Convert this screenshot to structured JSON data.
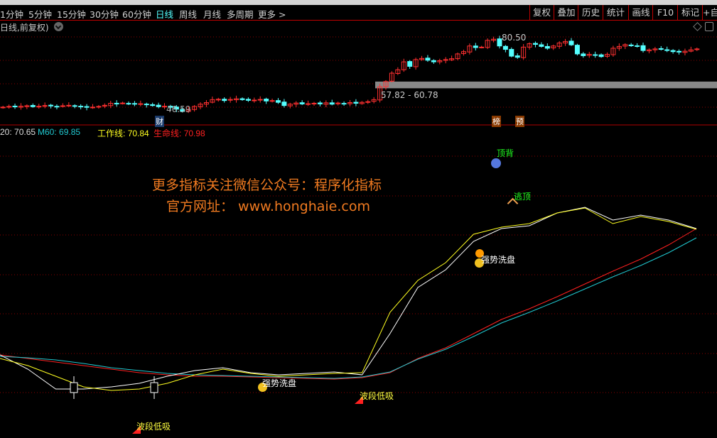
{
  "toolbar": {
    "periods": [
      "1分钟",
      "5分钟",
      "15分钟",
      "30分钟",
      "60分钟",
      "日线",
      "周线",
      "月线",
      "多周期",
      "更多 >"
    ],
    "active": "日线",
    "buttons": [
      "复权",
      "叠加",
      "历史",
      "统计",
      "画线",
      "F10",
      "标记",
      "+自"
    ]
  },
  "subtitle": "日线,前复权)",
  "icons": {
    "dropdown": "chevron-down-icon",
    "diamond": "diamond-icon",
    "layout": "panel-toggle-icon"
  },
  "price_panel": {
    "high_label": "80.50",
    "low_label": "46.59",
    "gap_label": "57.82 - 60.78",
    "gap_range": [
      57.82,
      60.78
    ],
    "tags": [
      "财",
      "榜",
      "预"
    ],
    "closes": [
      49.5,
      49.8,
      49.6,
      49.9,
      50.1,
      49.7,
      49.9,
      50.2,
      50.0,
      49.8,
      50.1,
      50.3,
      49.9,
      49.6,
      49.4,
      49.5,
      49.8,
      50.3,
      51.2,
      51.0,
      51.3,
      51.1,
      50.8,
      51.0,
      50.6,
      50.2,
      49.7,
      49.9,
      49.4,
      48.6,
      47.6,
      48.3,
      49.8,
      50.8,
      51.5,
      52.8,
      53.0,
      52.4,
      52.9,
      53.2,
      52.8,
      52.5,
      52.6,
      52.9,
      52.2,
      52.4,
      51.6,
      50.2,
      50.8,
      51.3,
      50.9,
      51.0,
      51.2,
      50.9,
      51.4,
      50.8,
      51.3,
      51.0,
      51.5,
      51.2,
      51.6,
      51.9,
      52.8,
      58.5,
      60.8,
      64.5,
      66,
      69.5,
      67.5,
      70.5,
      71,
      70.2,
      69.5,
      70,
      70.5,
      70.9,
      73,
      74,
      76.5,
      75.8,
      76,
      79,
      79.5,
      76.5,
      75,
      72,
      71.5,
      76,
      77.5,
      77.2,
      76.3,
      75.5,
      76.5,
      77.8,
      78.5,
      77,
      73,
      72.2,
      72.8,
      72.6,
      71.8,
      72.8,
      75.5,
      76.3,
      77.1,
      76.6,
      76.5,
      74.5,
      74.8,
      75.2,
      75,
      74.5,
      74,
      73.8,
      74.2,
      74.8,
      75.2
    ],
    "up_color": "#ff3030",
    "down_color": "#54ffff"
  },
  "indicators": {
    "m20_label": "20:",
    "m20": "70.65",
    "m60_label": "M60:",
    "m60": "69.85",
    "work_label": "工作线:",
    "work": "70.84",
    "life_label": "生命线:",
    "life": "70.98"
  },
  "watermark": {
    "line1": "更多指标关注微信公众号：程序化指标",
    "line2": "官方网址： www.honghaie.com"
  },
  "signals": {
    "top_div": "顶背",
    "escape_top": "逃顶",
    "wash1": "强势洗盘",
    "wash2": "强势洗盘",
    "low_buy1": "波段低吸",
    "low_buy2": "波段低吸"
  },
  "lines": {
    "life": {
      "color": "#ff2020",
      "values": [
        117,
        112,
        107,
        102,
        97,
        92,
        89,
        87,
        87,
        86,
        85,
        84,
        83,
        85,
        92,
        112,
        127,
        147,
        167,
        182,
        199,
        217,
        235,
        252,
        272,
        295
      ]
    },
    "m60": {
      "color": "#20c8d0",
      "values": [
        115,
        113,
        110,
        105,
        99,
        95,
        91,
        89,
        88,
        87,
        86,
        85,
        84,
        86,
        93,
        111,
        125,
        143,
        162,
        177,
        193,
        210,
        227,
        243,
        261,
        282
      ]
    },
    "m20": {
      "color": "#ffffff",
      "values": [
        117,
        97,
        69,
        69,
        72,
        77,
        87,
        95,
        99,
        92,
        89,
        91,
        93,
        89,
        147,
        212,
        237,
        277,
        295,
        299,
        317,
        325,
        307,
        314,
        307,
        295
      ]
    },
    "work": {
      "color": "#ffff20",
      "values": [
        112,
        102,
        87,
        72,
        67,
        69,
        77,
        89,
        97,
        91,
        87,
        89,
        91,
        92,
        177,
        222,
        247,
        287,
        297,
        302,
        317,
        324,
        302,
        312,
        305,
        294
      ]
    }
  }
}
